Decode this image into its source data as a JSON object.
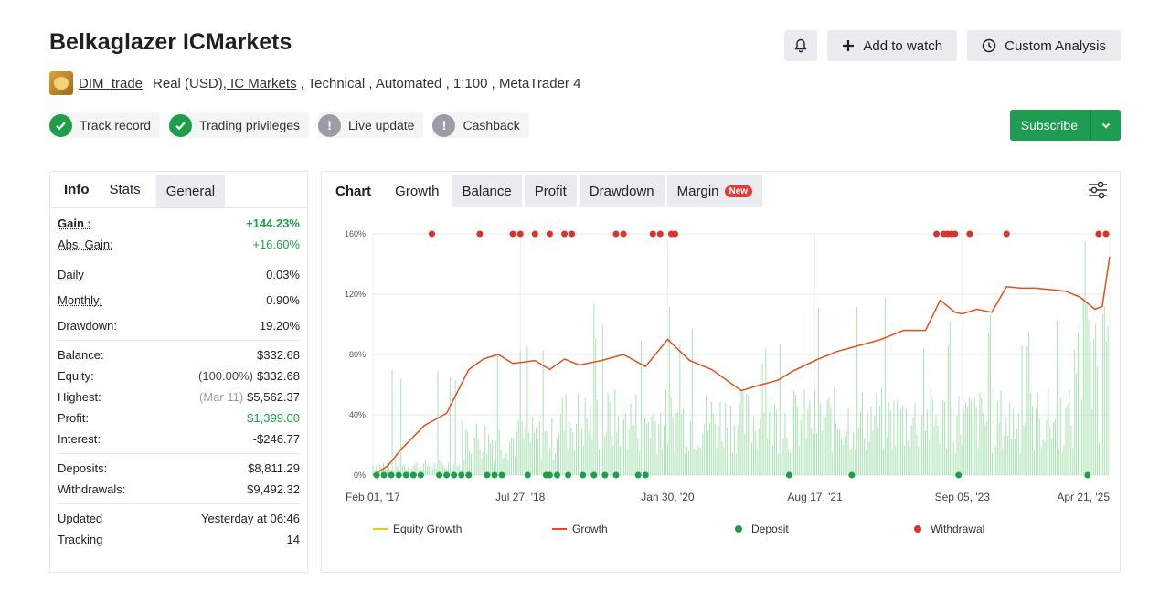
{
  "header": {
    "title": "Belkaglazer ICMarkets",
    "author": "DIM_trade",
    "account_type": "Real (USD)",
    "broker": ", IC Markets",
    "tags": ", Technical , Automated , 1:100 , MetaTrader 4",
    "add_to_watch": "Add to watch",
    "custom_analysis": "Custom Analysis",
    "subscribe": "Subscribe"
  },
  "badges": [
    {
      "label": "Track record",
      "status": "ok"
    },
    {
      "label": "Trading privileges",
      "status": "ok"
    },
    {
      "label": "Live update",
      "status": "warn"
    },
    {
      "label": "Cashback",
      "status": "warn"
    }
  ],
  "info": {
    "tabs": [
      "Info",
      "Stats",
      "General"
    ],
    "gain_label": "Gain :",
    "gain": "+144.23%",
    "abs_gain_label": "Abs. Gain:",
    "abs_gain": "+16.60%",
    "daily_label": "Daily",
    "daily": "0.03%",
    "monthly_label": "Monthly:",
    "monthly": "0.90%",
    "drawdown_label": "Drawdown:",
    "drawdown": "19.20%",
    "balance_label": "Balance:",
    "balance": "$332.68",
    "equity_label": "Equity:",
    "equity_pct": "(100.00%)",
    "equity": "$332.68",
    "highest_label": "Highest:",
    "highest_date": "(Mar 11)",
    "highest": "$5,562.37",
    "profit_label": "Profit:",
    "profit": "$1,399.00",
    "interest_label": "Interest:",
    "interest": "-$246.77",
    "deposits_label": "Deposits:",
    "deposits": "$8,811.29",
    "withdrawals_label": "Withdrawals:",
    "withdrawals": "$9,492.32",
    "updated_label": "Updated",
    "updated": "Yesterday at 06:46",
    "tracking_label": "Tracking",
    "tracking": "14"
  },
  "chart_tabs": [
    "Chart",
    "Growth",
    "Balance",
    "Profit",
    "Drawdown",
    "Margin"
  ],
  "new_badge": "New",
  "legend": [
    "Equity Growth",
    "Growth",
    "Deposit",
    "Withdrawal"
  ],
  "colors": {
    "growth": "#e0501f",
    "equity": "#f0c419",
    "deposit": "#1e9e4b",
    "withdrawal": "#d9332c",
    "volume": "#8fd99a",
    "accent": "#1d9c52"
  },
  "chart_data": {
    "type": "line",
    "xlabels": [
      "Feb 01, '17",
      "Jul 27, '18",
      "Jan 30, '20",
      "Aug 17, '21",
      "Sep 05, '23",
      "Apr 21, '25"
    ],
    "ylabels": [
      "0%",
      "40%",
      "80%",
      "120%",
      "160%"
    ],
    "ylim": [
      0,
      160
    ],
    "grid": true,
    "legend_position": "bottom",
    "series": [
      {
        "name": "Growth",
        "x": [
          0,
          0.02,
          0.04,
          0.07,
          0.1,
          0.13,
          0.15,
          0.17,
          0.19,
          0.22,
          0.24,
          0.26,
          0.28,
          0.31,
          0.34,
          0.37,
          0.4,
          0.43,
          0.46,
          0.5,
          0.52,
          0.55,
          0.57,
          0.6,
          0.63,
          0.66,
          0.69,
          0.72,
          0.75,
          0.77,
          0.79,
          0.8,
          0.82,
          0.84,
          0.86,
          0.88,
          0.9,
          0.92,
          0.94,
          0.96,
          0.98,
          0.99,
          1.0
        ],
        "y": [
          0,
          6,
          18,
          33,
          41,
          70,
          77,
          80,
          74,
          76,
          70,
          77,
          73,
          76,
          80,
          72,
          90,
          76,
          70,
          56,
          59,
          63,
          69,
          76,
          82,
          86,
          90,
          96,
          96,
          116,
          108,
          107,
          110,
          108,
          125,
          124,
          124,
          123,
          122,
          118,
          110,
          112,
          145
        ]
      }
    ],
    "deposits_x": [
      0.005,
      0.015,
      0.025,
      0.035,
      0.045,
      0.055,
      0.065,
      0.09,
      0.1,
      0.11,
      0.12,
      0.13,
      0.155,
      0.165,
      0.175,
      0.21,
      0.235,
      0.24,
      0.25,
      0.265,
      0.285,
      0.3,
      0.315,
      0.33,
      0.36,
      0.37,
      0.565,
      0.65,
      0.795,
      0.97
    ],
    "withdrawals_x": [
      0.08,
      0.145,
      0.19,
      0.2,
      0.22,
      0.24,
      0.26,
      0.27,
      0.33,
      0.34,
      0.38,
      0.39,
      0.405,
      0.41,
      0.765,
      0.775,
      0.78,
      0.785,
      0.79,
      0.81,
      0.86,
      0.985,
      0.995
    ]
  }
}
